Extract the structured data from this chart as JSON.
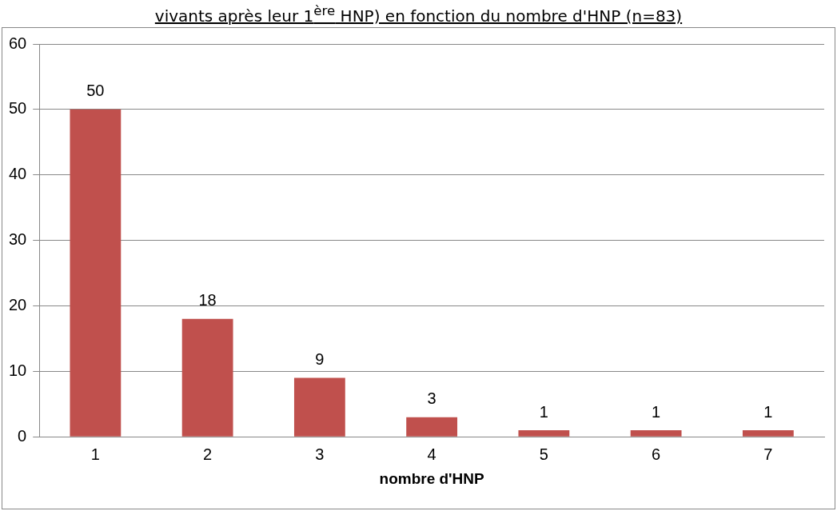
{
  "chart_data": {
    "type": "bar",
    "title": "vivants après leur 1$^{ère}$ HNP) en fonction du nombre d'HNP (n=83)",
    "xlabel": "nombre d'HNP",
    "categories": [
      "1",
      "2",
      "3",
      "4",
      "5",
      "6",
      "7"
    ],
    "values": [
      50,
      18,
      9,
      3,
      1,
      1,
      1
    ],
    "color": "#c0504d",
    "ylim": [
      0,
      60
    ],
    "yticks": [
      0,
      10,
      20,
      30,
      40,
      50,
      60
    ],
    "grid": "y",
    "data_labels": true,
    "legend": false
  }
}
